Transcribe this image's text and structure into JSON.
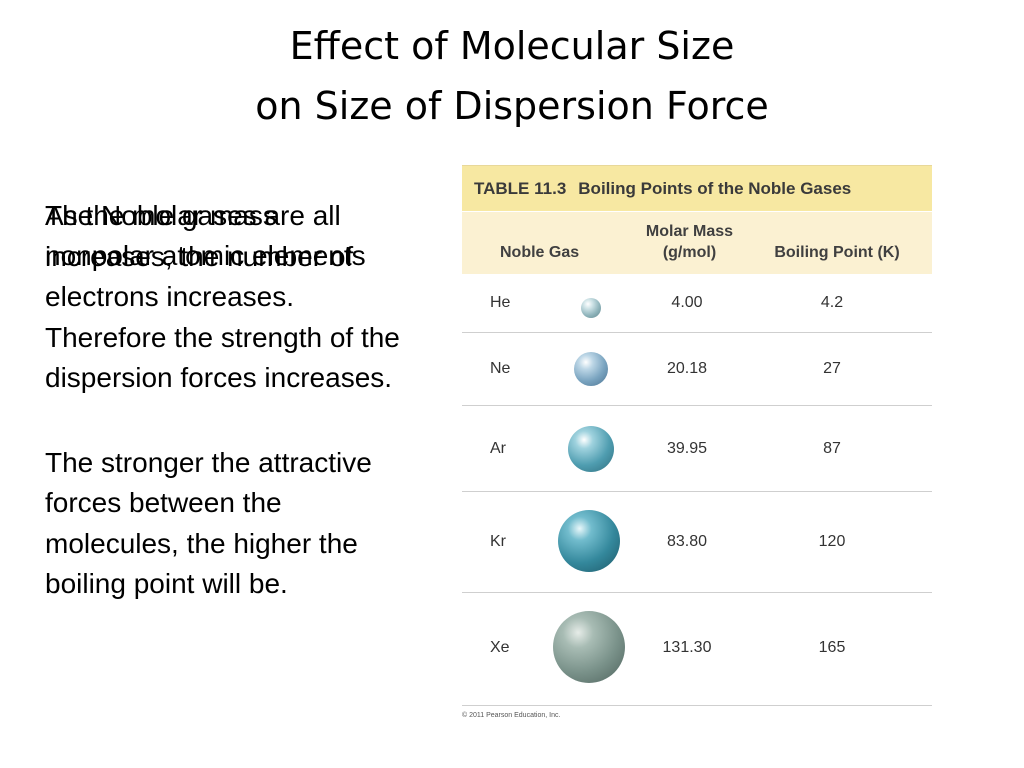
{
  "title": {
    "line1": "Effect of Molecular Size",
    "line2": "on Size of Dispersion Force"
  },
  "overlay_text": "The Noble gases are all nonpolar atomic elements",
  "body": {
    "para1": "As the molar mass increases, the number of electrons increases. Therefore the strength of the dispersion forces increases.",
    "para2": "The stronger the attractive forces between the molecules, the higher the boiling point will be."
  },
  "table": {
    "number": "TABLE 11.3",
    "caption": "Boiling Points of the Noble Gases",
    "headers": {
      "gas": "Noble Gas",
      "mass": "Molar Mass\n(g/mol)",
      "bp": "Boiling Point (K)"
    },
    "rows": [
      {
        "gas": "He",
        "mass": "4.00",
        "bp": "4.2"
      },
      {
        "gas": "Ne",
        "mass": "20.18",
        "bp": "27"
      },
      {
        "gas": "Ar",
        "mass": "39.95",
        "bp": "87"
      },
      {
        "gas": "Kr",
        "mass": "83.80",
        "bp": "120"
      },
      {
        "gas": "Xe",
        "mass": "131.30",
        "bp": "165"
      }
    ],
    "copyright": "© 2011 Pearson Education, Inc."
  },
  "colors": {
    "caption_bg": "#f7e8a2",
    "header_bg": "#fbf1d2"
  }
}
